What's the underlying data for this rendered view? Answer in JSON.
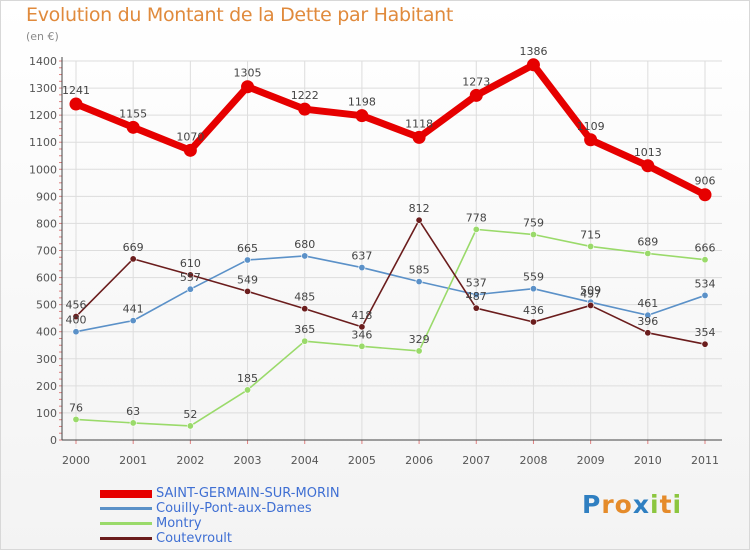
{
  "title": "Evolution du Montant de la Dette par Habitant",
  "subtitle": "(en €)",
  "logo": {
    "text": "Proxiti",
    "letters": [
      {
        "char": "P",
        "color": "#2f7fc1"
      },
      {
        "char": "r",
        "color": "#e58b2a"
      },
      {
        "char": "o",
        "color": "#e58b2a"
      },
      {
        "char": "x",
        "color": "#2f7fc1"
      },
      {
        "char": "i",
        "color": "#8cc63f"
      },
      {
        "char": "t",
        "color": "#e58b2a"
      },
      {
        "char": "i",
        "color": "#8cc63f"
      }
    ]
  },
  "chart_data": {
    "type": "line",
    "title": "Evolution du Montant de la Dette par Habitant",
    "subtitle": "(en €)",
    "x": [
      "2000",
      "2001",
      "2002",
      "2003",
      "2004",
      "2005",
      "2006",
      "2007",
      "2008",
      "2009",
      "2010",
      "2011"
    ],
    "ylim": [
      0,
      1400
    ],
    "yticks": [
      0,
      100,
      200,
      300,
      400,
      500,
      600,
      700,
      800,
      900,
      1000,
      1100,
      1200,
      1300,
      1400
    ],
    "grid": true,
    "legend_position": "bottom-left",
    "series": [
      {
        "name": "SAINT-GERMAIN-SUR-MORIN",
        "color": "#e60000",
        "emphasis": true,
        "values": [
          1241,
          1155,
          1070,
          1305,
          1222,
          1198,
          1118,
          1273,
          1386,
          1109,
          1013,
          906
        ]
      },
      {
        "name": "Couilly-Pont-aux-Dames",
        "color": "#5b91c8",
        "emphasis": false,
        "values": [
          400,
          441,
          557,
          665,
          680,
          637,
          585,
          537,
          559,
          509,
          461,
          534
        ]
      },
      {
        "name": "Montry",
        "color": "#9ada6a",
        "emphasis": false,
        "values": [
          76,
          63,
          52,
          185,
          365,
          346,
          329,
          778,
          759,
          715,
          689,
          666
        ]
      },
      {
        "name": "Coutevroult",
        "color": "#6b1d1d",
        "emphasis": false,
        "values": [
          456,
          669,
          610,
          549,
          485,
          418,
          812,
          487,
          436,
          497,
          396,
          354
        ]
      }
    ]
  }
}
